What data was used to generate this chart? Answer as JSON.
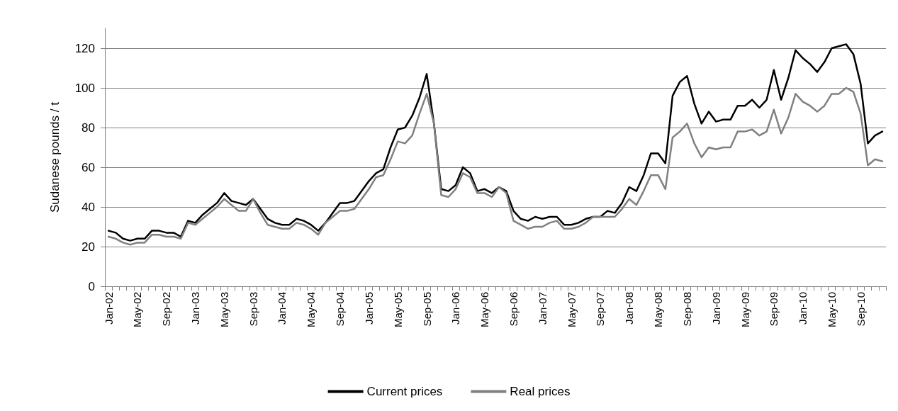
{
  "chart_data": {
    "type": "line",
    "ylabel": "Sudanese pounds / t",
    "categories": [
      "Jan-02",
      null,
      null,
      null,
      "May-02",
      null,
      null,
      null,
      "Sep-02",
      null,
      null,
      null,
      "Jan-03",
      null,
      null,
      null,
      "May-03",
      null,
      null,
      null,
      "Sep-03",
      null,
      null,
      null,
      "Jan-04",
      null,
      null,
      null,
      "May-04",
      null,
      null,
      null,
      "Sep-04",
      null,
      null,
      null,
      "Jan-05",
      null,
      null,
      null,
      "May-05",
      null,
      null,
      null,
      "Sep-05",
      null,
      null,
      null,
      "Jan-06",
      null,
      null,
      null,
      "May-06",
      null,
      null,
      null,
      "Sep-06",
      null,
      null,
      null,
      "Jan-07",
      null,
      null,
      null,
      "May-07",
      null,
      null,
      null,
      "Sep-07",
      null,
      null,
      null,
      "Jan-08",
      null,
      null,
      null,
      "May-08",
      null,
      null,
      null,
      "Sep-08",
      null,
      null,
      null,
      "Jan-09",
      null,
      null,
      null,
      "May-09",
      null,
      null,
      null,
      "Sep-09",
      null,
      null,
      null,
      "Jan-10",
      null,
      null,
      null,
      "May-10",
      null,
      null,
      null,
      "Sep-10",
      null,
      null,
      null
    ],
    "series": [
      {
        "name": "Current prices",
        "color": "#000000",
        "values": [
          28,
          27,
          24,
          23,
          24,
          24,
          28,
          28,
          27,
          27,
          25,
          33,
          32,
          36,
          39,
          42,
          47,
          43,
          42,
          41,
          44,
          39,
          34,
          32,
          31,
          31,
          34,
          33,
          31,
          28,
          32,
          37,
          42,
          42,
          43,
          48,
          53,
          57,
          59,
          70,
          79,
          80,
          86,
          95,
          107,
          82,
          49,
          48,
          51,
          60,
          57,
          48,
          49,
          47,
          50,
          48,
          38,
          34,
          33,
          35,
          34,
          35,
          35,
          31,
          31,
          32,
          34,
          35,
          35,
          38,
          37,
          42,
          50,
          48,
          56,
          67,
          67,
          62,
          96,
          103,
          106,
          92,
          82,
          88,
          83,
          84,
          84,
          91,
          91,
          94,
          90,
          94,
          109,
          94,
          105,
          119,
          115,
          112,
          108,
          113,
          120,
          121,
          122,
          117,
          102,
          72,
          76,
          78
        ]
      },
      {
        "name": "Real prices",
        "color": "#808080",
        "values": [
          25,
          24,
          22,
          21,
          22,
          22,
          26,
          26,
          25,
          25,
          24,
          32,
          31,
          34,
          37,
          40,
          44,
          41,
          38,
          38,
          44,
          37,
          31,
          30,
          29,
          29,
          32,
          31,
          29,
          26,
          32,
          35,
          38,
          38,
          39,
          44,
          49,
          55,
          56,
          64,
          73,
          72,
          76,
          87,
          97,
          82,
          46,
          45,
          49,
          57,
          55,
          47,
          47,
          45,
          50,
          47,
          33,
          31,
          29,
          30,
          30,
          32,
          33,
          29,
          29,
          30,
          32,
          35,
          35,
          35,
          35,
          39,
          44,
          41,
          48,
          56,
          56,
          49,
          75,
          78,
          82,
          72,
          65,
          70,
          69,
          70,
          70,
          78,
          78,
          79,
          76,
          78,
          89,
          77,
          85,
          97,
          93,
          91,
          88,
          91,
          97,
          97,
          100,
          98,
          87,
          61,
          64,
          63
        ]
      }
    ],
    "ylim": [
      0,
      130
    ],
    "yticks": [
      0,
      20,
      40,
      60,
      80,
      100,
      120
    ],
    "grid": "y",
    "legend": "bottom",
    "marker": "none",
    "line_style": "solid"
  }
}
